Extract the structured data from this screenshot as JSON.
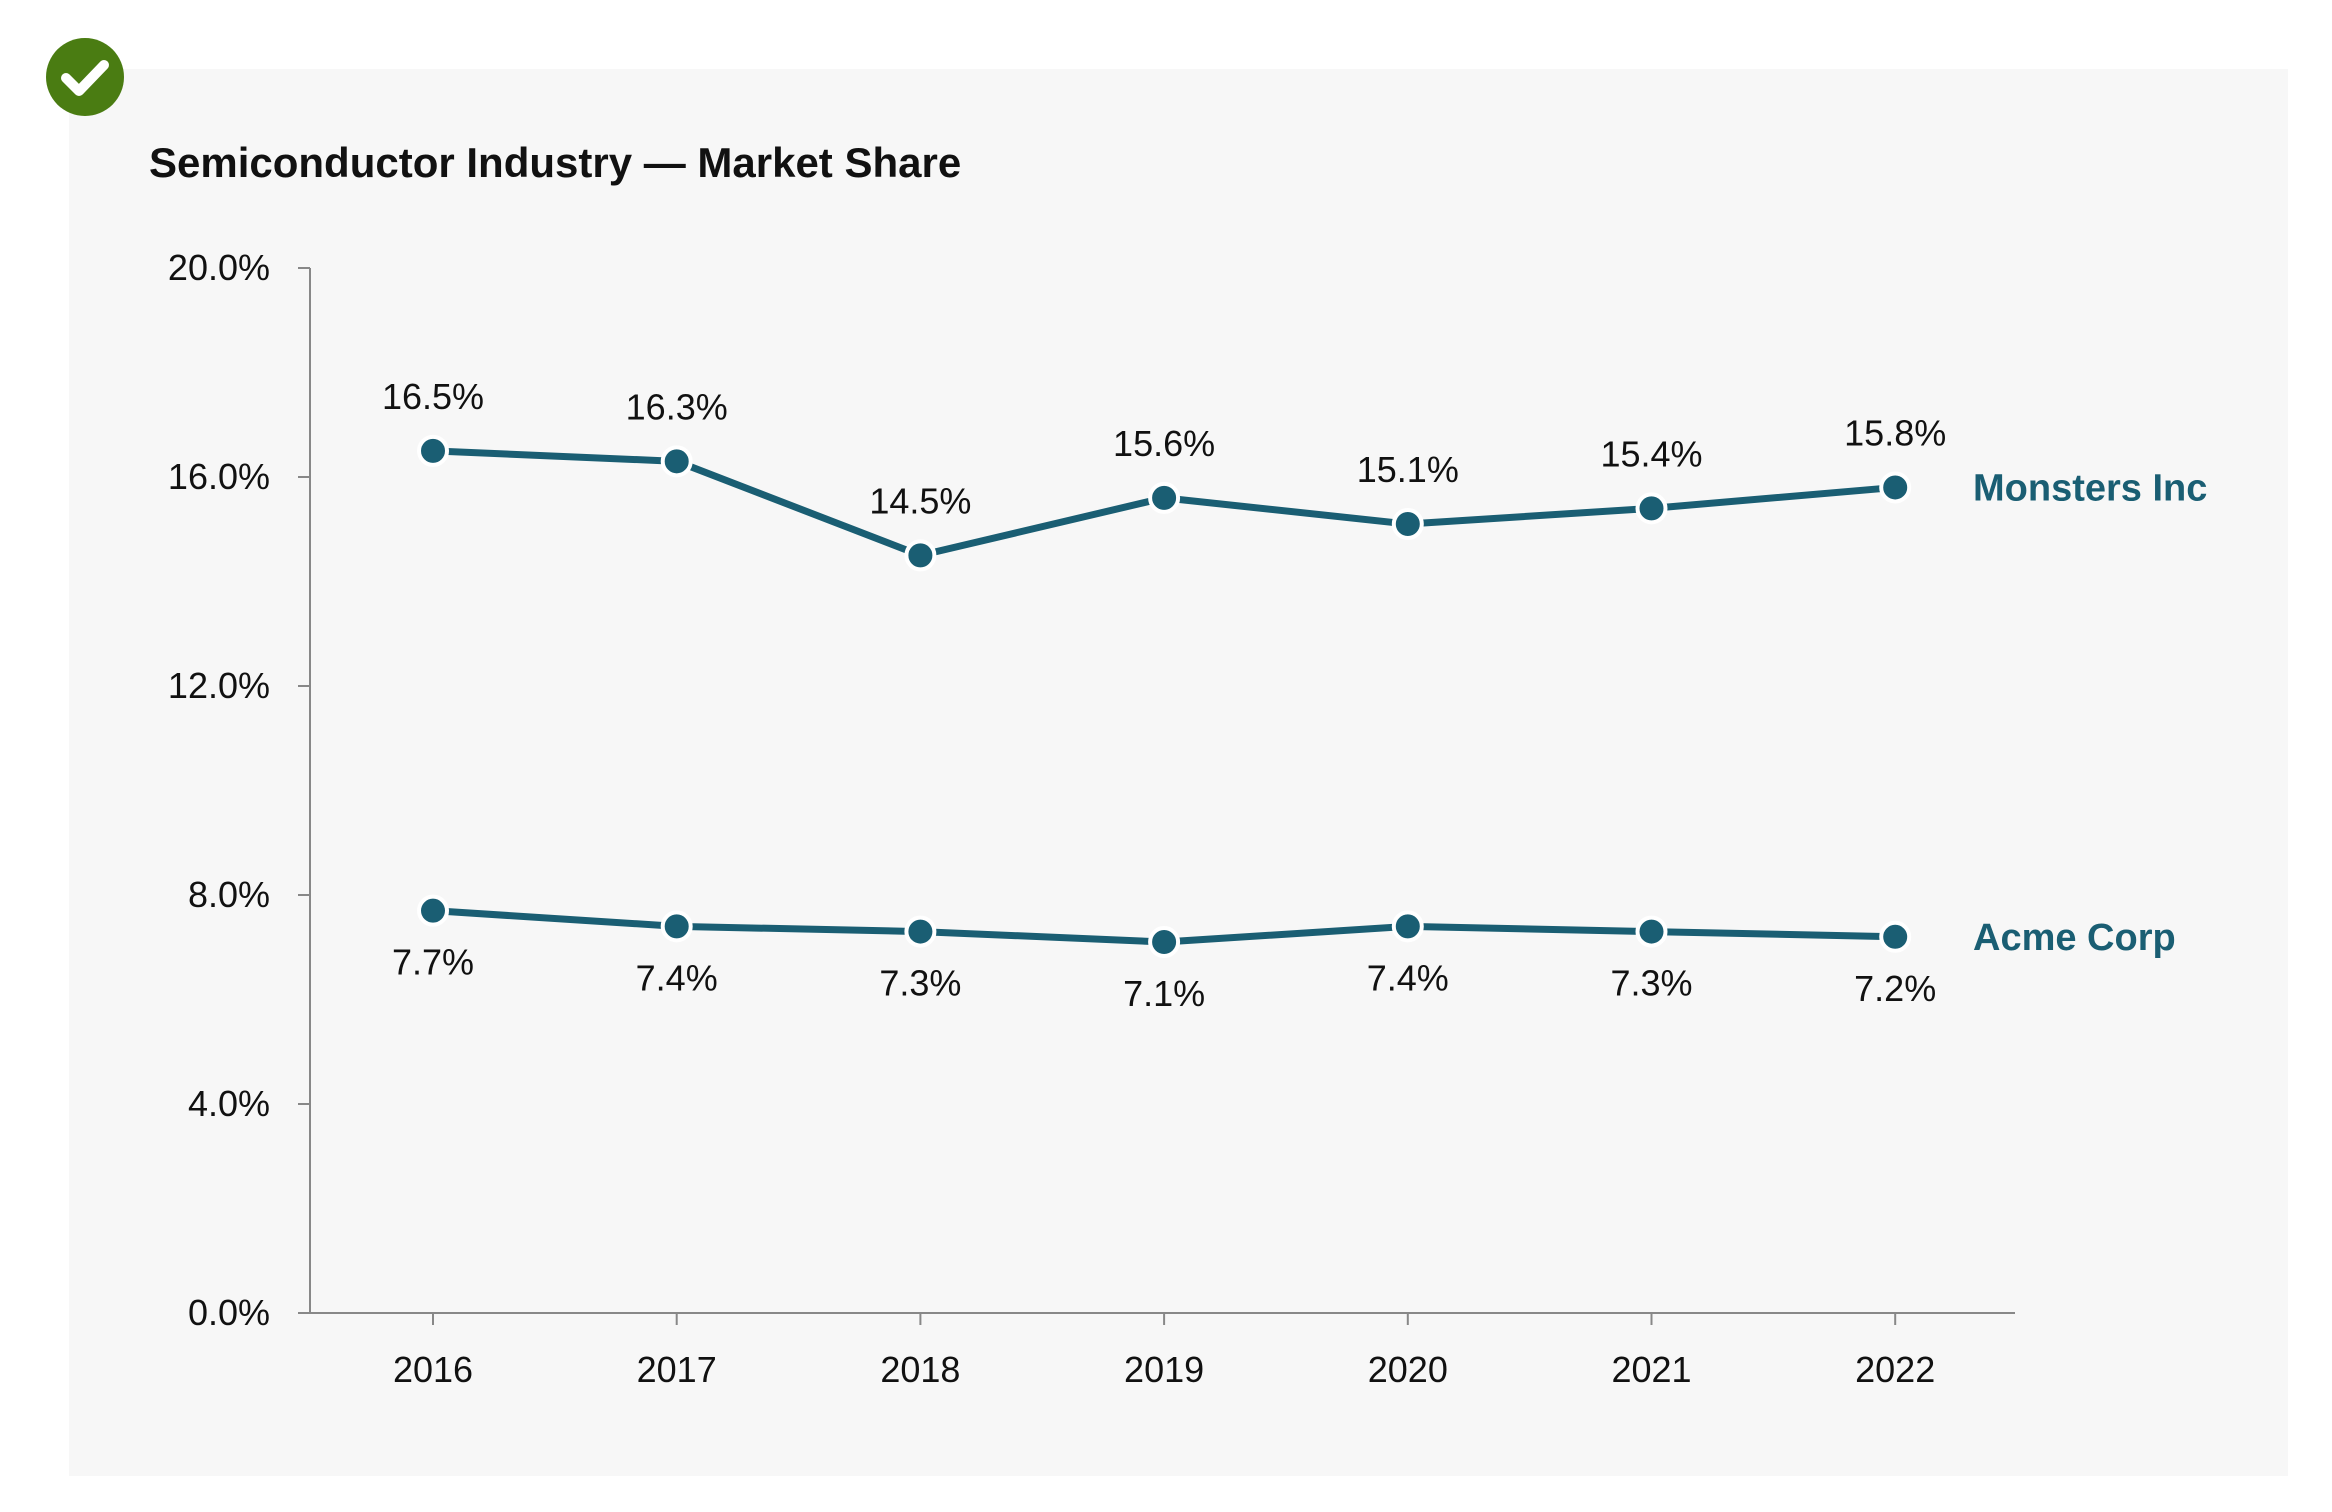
{
  "chart_data": {
    "type": "line",
    "title": "Semiconductor Industry — Market Share",
    "x": [
      "2016",
      "2017",
      "2018",
      "2019",
      "2020",
      "2021",
      "2022"
    ],
    "ylim": [
      0,
      20
    ],
    "yticks": [
      "0.0%",
      "4.0%",
      "8.0%",
      "12.0%",
      "16.0%",
      "20.0%"
    ],
    "ytick_values": [
      0,
      4,
      8,
      12,
      16,
      20
    ],
    "grid": false,
    "legend": "direct labels at right end of lines",
    "series": [
      {
        "name": "Monsters Inc",
        "values": [
          16.5,
          16.3,
          14.5,
          15.6,
          15.1,
          15.4,
          15.8
        ],
        "labels": [
          "16.5%",
          "16.3%",
          "14.5%",
          "15.6%",
          "15.1%",
          "15.4%",
          "15.8%"
        ],
        "label_position": "above"
      },
      {
        "name": "Acme Corp",
        "values": [
          7.7,
          7.4,
          7.3,
          7.1,
          7.4,
          7.3,
          7.2
        ],
        "labels": [
          "7.7%",
          "7.4%",
          "7.3%",
          "7.1%",
          "7.4%",
          "7.3%",
          "7.2%"
        ],
        "label_position": "below"
      }
    ]
  },
  "colors": {
    "series": "#1a5e73",
    "axis": "#888888",
    "panel": "#f7f7f7",
    "badge": "#4a7c12"
  },
  "badge": {
    "icon": "check-icon"
  }
}
